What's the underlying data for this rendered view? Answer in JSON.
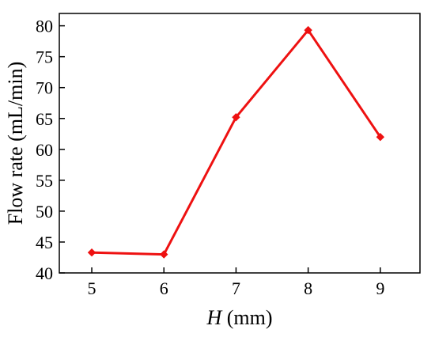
{
  "chart_data": {
    "type": "line",
    "title": "",
    "xlabel_italic": "H",
    "xlabel_rest": " (mm)",
    "ylabel": "Flow rate (mL/min)",
    "x": [
      5,
      6,
      7,
      8,
      9
    ],
    "y": [
      43.3,
      43.0,
      65.2,
      79.3,
      62.0
    ],
    "x_ticks": [
      5,
      6,
      7,
      8,
      9
    ],
    "y_ticks": [
      40,
      45,
      50,
      55,
      60,
      65,
      70,
      75,
      80
    ],
    "xlim": [
      4.55,
      9.55
    ],
    "ylim": [
      40,
      82
    ],
    "grid": false,
    "legend": "none",
    "series_color": "#ee1111",
    "marker": "diamond"
  }
}
